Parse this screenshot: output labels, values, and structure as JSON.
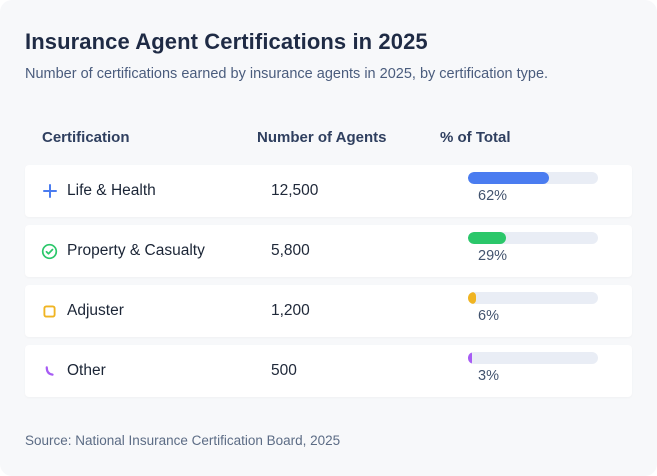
{
  "page": {
    "title": "Insurance Agent Certifications in 2025",
    "subtitle": "Number of certifications earned by insurance agents in 2025, by certification type.",
    "source": "Source: National Insurance Certification Board, 2025"
  },
  "table": {
    "headers": [
      "Certification",
      "Number of Agents",
      "% of Total"
    ],
    "track_color": "#e9edf5",
    "rows": [
      {
        "icon": "plus-icon",
        "color": "#4a7cf0",
        "label": "Life & Health",
        "agents": "12,500",
        "percent": 62,
        "percent_label": "62%"
      },
      {
        "icon": "check-circle-icon",
        "color": "#2bc76a",
        "label": "Property & Casualty",
        "agents": "5,800",
        "percent": 29,
        "percent_label": "29%"
      },
      {
        "icon": "square-icon",
        "color": "#f0b422",
        "label": "Adjuster",
        "agents": "1,200",
        "percent": 6,
        "percent_label": "6%"
      },
      {
        "icon": "curve-icon",
        "color": "#a75cf4",
        "label": "Other",
        "agents": "500",
        "percent": 3,
        "percent_label": "3%"
      }
    ]
  },
  "chart_data": {
    "type": "table",
    "title": "Insurance Agent Certifications in 2025",
    "subtitle": "Number of certifications earned by insurance agents in 2025, by certification type.",
    "columns": [
      "Certification",
      "Number of Agents",
      "% of Total"
    ],
    "categories": [
      "Life & Health",
      "Property & Casualty",
      "Adjuster",
      "Other"
    ],
    "values": [
      12500,
      5800,
      1200,
      500
    ],
    "percentages": [
      62,
      29,
      6,
      3
    ],
    "bar_colors": [
      "#4a7cf0",
      "#2bc76a",
      "#f0b422",
      "#a75cf4"
    ],
    "source": "Source: National Insurance Certification Board, 2025"
  }
}
